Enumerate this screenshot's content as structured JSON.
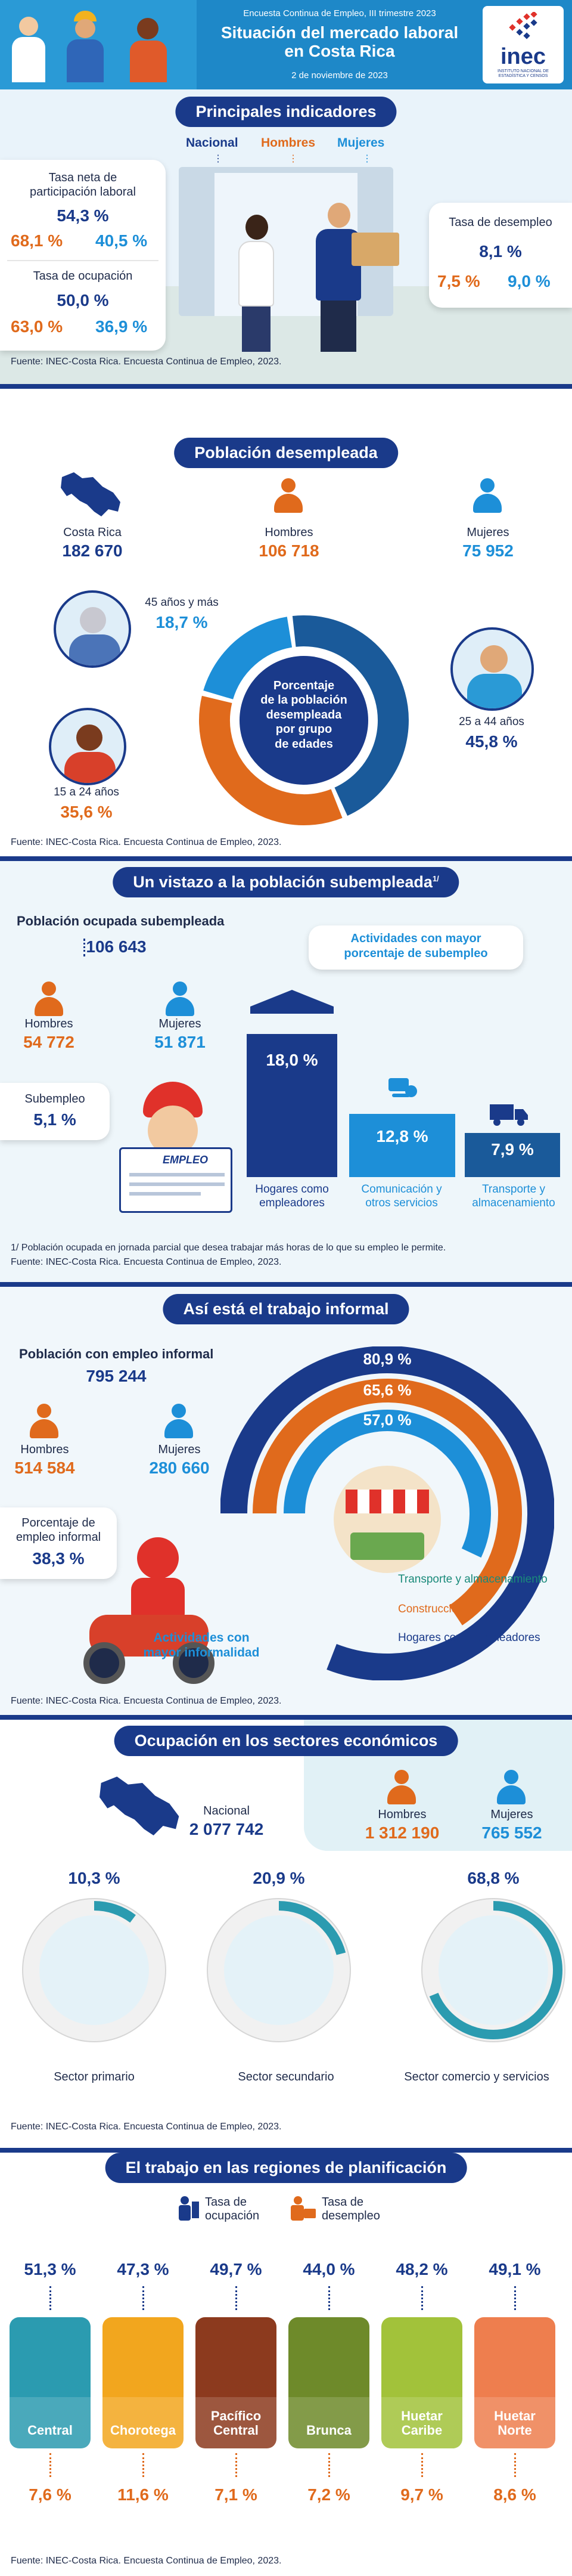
{
  "header": {
    "supertitle": "Encuesta Continua de Empleo, III trimestre 2023",
    "title_line1": "Situación del mercado laboral",
    "title_line2": "en Costa Rica",
    "date": "2 de noviembre de 2023",
    "logo_text": "inec",
    "logo_sub": "INSTITUTO NACIONAL DE ESTADÍSTICA Y CENSOS"
  },
  "indicadores": {
    "title": "Principales indicadores",
    "legend": [
      "Nacional",
      "Hombres",
      "Mujeres"
    ],
    "participacion": {
      "label_line1": "Tasa neta de",
      "label_line2": "participación laboral",
      "nacional": "54,3 %",
      "hombres": "68,1 %",
      "mujeres": "40,5 %"
    },
    "ocupacion": {
      "label": "Tasa de ocupación",
      "nacional": "50,0 %",
      "hombres": "63,0 %",
      "mujeres": "36,9 %"
    },
    "desempleo": {
      "label": "Tasa de desempleo",
      "nacional": "8,1 %",
      "hombres": "7,5 %",
      "mujeres": "9,0 %"
    },
    "source": "Fuente: INEC-Costa Rica. Encuesta Continua de Empleo, 2023."
  },
  "desempleada": {
    "title": "Población desempleada",
    "costa_rica_label": "Costa Rica",
    "costa_rica_value": "182 670",
    "hombres_label": "Hombres",
    "hombres_value": "106 718",
    "mujeres_label": "Mujeres",
    "mujeres_value": "75 952",
    "donut_center": [
      "Porcentaje",
      "de la población",
      "desempleada",
      "por grupo",
      "de edades"
    ],
    "groups": [
      {
        "label": "45 años y más",
        "value": "18,7 %",
        "share": 18.7,
        "color": "#1d8fd8"
      },
      {
        "label": "25 a 44 años",
        "value": "45,8 %",
        "share": 45.8,
        "color": "#1a5a9a"
      },
      {
        "label": "15 a 24 años",
        "value": "35,6 %",
        "share": 35.6,
        "color": "#e06a1c"
      }
    ],
    "source": "Fuente: INEC-Costa Rica. Encuesta Continua de Empleo, 2023."
  },
  "subempleada": {
    "title": "Un vistazo a la población subempleada",
    "title_sup": "1/",
    "ocupada_label": "Población ocupada subempleada",
    "ocupada_value": "106 643",
    "hombres_label": "Hombres",
    "hombres_value": "54 772",
    "mujeres_label": "Mujeres",
    "mujeres_value": "51 871",
    "subempleo_label": "Subempleo",
    "subempleo_value": "5,1 %",
    "actividades_title_line1": "Actividades con mayor",
    "actividades_title_line2": "porcentaje de subempleo",
    "activities": [
      {
        "value": "18,0 %",
        "label_line1": "Hogares como",
        "label_line2": "empleadores",
        "label_color": "#1a3a8a"
      },
      {
        "value": "12,8 %",
        "label_line1": "Comunicación y",
        "label_line2": "otros servicios",
        "label_color": "#1d8fd8"
      },
      {
        "value": "7,9 %",
        "label_line1": "Transporte y",
        "label_line2": "almacenamiento",
        "label_color": "#1d8fd8"
      }
    ],
    "newspaper_text": "EMPLEO",
    "footnote": "1/ Población ocupada en jornada parcial que desea trabajar más horas de lo que su empleo le permite.",
    "source": "Fuente: INEC-Costa Rica. Encuesta Continua de Empleo, 2023."
  },
  "informal": {
    "title": "Así está el trabajo informal",
    "ocupada_label": "Población con empleo informal",
    "ocupada_value": "795 244",
    "hombres_label": "Hombres",
    "hombres_value": "514 584",
    "mujeres_label": "Mujeres",
    "mujeres_value": "280 660",
    "porcentaje_label_line1": "Porcentaje de",
    "porcentaje_label_line2": "empleo informal",
    "porcentaje_value": "38,3 %",
    "actividades_label_line1": "Actividades con",
    "actividades_label_line2": "mayor informalidad",
    "arcs": [
      {
        "value": "80,9 %",
        "name": "Hogares como empleadores",
        "share": 80.9,
        "color": "#1a3a8a"
      },
      {
        "value": "65,6 %",
        "name": "Construcción",
        "share": 65.6,
        "color": "#e06a1c"
      },
      {
        "value": "57,0 %",
        "name": "Transporte y almacenamiento",
        "share": 57.0,
        "color": "#1d8fd8"
      }
    ],
    "source": "Fuente: INEC-Costa Rica. Encuesta Continua de Empleo, 2023."
  },
  "sectores": {
    "title": "Ocupación en los sectores económicos",
    "nacional_label": "Nacional",
    "nacional_value": "2 077 742",
    "hombres_label": "Hombres",
    "hombres_value": "1 312 190",
    "mujeres_label": "Mujeres",
    "mujeres_value": "765 552",
    "sectors": [
      {
        "value": "10,3 %",
        "share": 10.3,
        "label": "Sector primario"
      },
      {
        "value": "20,9 %",
        "share": 20.9,
        "label": "Sector secundario"
      },
      {
        "value": "68,8 %",
        "share": 68.8,
        "label": "Sector comercio y servicios"
      }
    ],
    "source": "Fuente: INEC-Costa Rica. Encuesta Continua de Empleo, 2023."
  },
  "regiones": {
    "title": "El trabajo en las regiones de planificación",
    "legend_ocupacion_line1": "Tasa de",
    "legend_ocupacion_line2": "ocupación",
    "legend_desempleo_line1": "Tasa de",
    "legend_desempleo_line2": "desempleo",
    "regions": [
      {
        "name_line1": "Central",
        "name_line2": "",
        "ocupacion": "51,3 %",
        "desempleo": "7,6 %",
        "color": "#2b9bb0"
      },
      {
        "name_line1": "Chorotega",
        "name_line2": "",
        "ocupacion": "47,3 %",
        "desempleo": "11,6 %",
        "color": "#f2a61e"
      },
      {
        "name_line1": "Pacífico",
        "name_line2": "Central",
        "ocupacion": "49,7 %",
        "desempleo": "7,1 %",
        "color": "#8c3a1e"
      },
      {
        "name_line1": "Brunca",
        "name_line2": "",
        "ocupacion": "44,0 %",
        "desempleo": "7,2 %",
        "color": "#6e8a2a"
      },
      {
        "name_line1": "Huetar",
        "name_line2": "Caribe",
        "ocupacion": "48,2 %",
        "desempleo": "9,7 %",
        "color": "#a2c23a"
      },
      {
        "name_line1": "Huetar",
        "name_line2": "Norte",
        "ocupacion": "49,1 %",
        "desempleo": "8,6 %",
        "color": "#ee7e4e"
      }
    ],
    "source": "Fuente: INEC-Costa Rica. Encuesta Continua de Empleo, 2023."
  }
}
